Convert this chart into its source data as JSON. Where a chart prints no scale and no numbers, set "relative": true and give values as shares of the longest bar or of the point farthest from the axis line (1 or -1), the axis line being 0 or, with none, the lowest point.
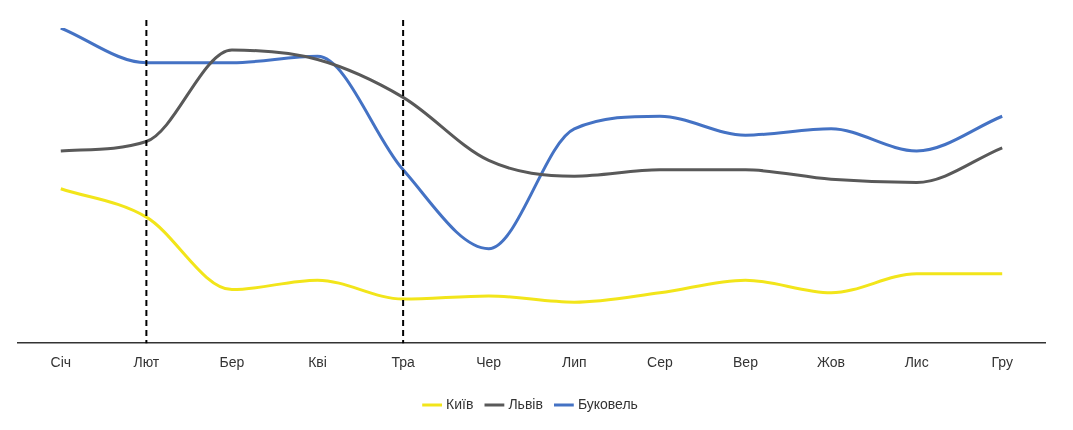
{
  "chart_data": {
    "type": "line",
    "relative": true,
    "categories": [
      "Січ",
      "Лют",
      "Бер",
      "Кві",
      "Тра",
      "Чер",
      "Лип",
      "Сер",
      "Вер",
      "Жов",
      "Лис",
      "Гру"
    ],
    "series": [
      {
        "name": "Київ",
        "color": "#f2e51a",
        "values": [
          0.49,
          0.4,
          0.17,
          0.2,
          0.14,
          0.15,
          0.13,
          0.16,
          0.2,
          0.16,
          0.22,
          0.22
        ]
      },
      {
        "name": "Львів",
        "color": "#595959",
        "values": [
          0.61,
          0.64,
          0.93,
          0.9,
          0.78,
          0.58,
          0.53,
          0.55,
          0.55,
          0.52,
          0.51,
          0.62
        ]
      },
      {
        "name": "Буковель",
        "color": "#4472c4",
        "values": [
          1.0,
          0.89,
          0.89,
          0.91,
          0.55,
          0.3,
          0.68,
          0.72,
          0.66,
          0.68,
          0.61,
          0.72
        ]
      }
    ],
    "ref_lines": [
      {
        "axis": "x",
        "value": "Лют",
        "color": "#000000",
        "line_style": "dashed"
      },
      {
        "axis": "x",
        "value": "Тра",
        "color": "#000000",
        "line_style": "dashed"
      }
    ],
    "grid": false,
    "legend": "bottom",
    "marker": "none",
    "line_style": "solid"
  }
}
